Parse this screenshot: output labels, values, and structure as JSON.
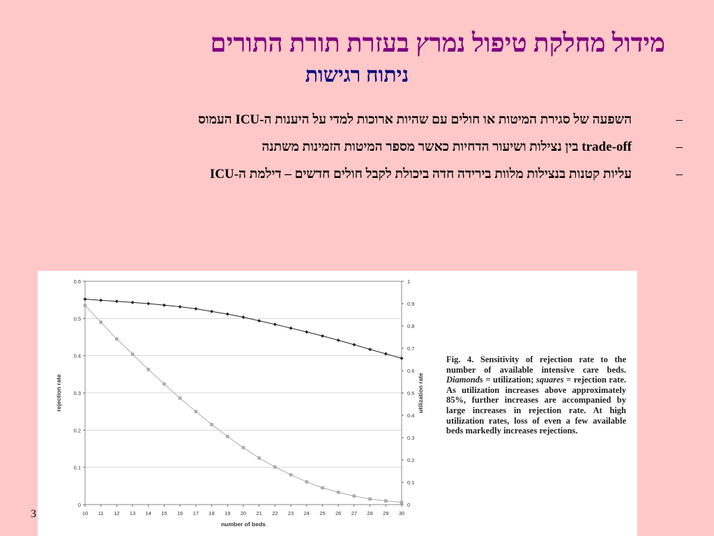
{
  "slide": {
    "title": "מידול מחלקת טיפול נמרץ בעזרת תורת התורים",
    "subtitle": "ניתוח רגישות",
    "bullet_marker": "–",
    "bullets": [
      "השפעה של סגירת המיטות או חולים עם שהיות ארוכות למדי על היענות ה-ICU העמוס",
      "trade-off בין נצילות ושיעור הדחיות כאשר מספר המיטות הזמינות משתנה",
      "עליות קטנות בנצילות מלוות בירידה חדה ביכולת לקבל חולים חדשים – דילמת ה-ICU"
    ],
    "page_number": "3"
  },
  "figure": {
    "caption_lead": "Fig. 4. Sensitivity of rejection rate to the number of available intensive care beds.",
    "caption_diamonds": "Diamonds",
    "caption_mid": " = utilization; ",
    "caption_squares": "squares",
    "caption_tail": " = rejection rate. As utilization increases above approximately 85%, further increases are accompanied by large increases in rejection rate. At high utilization rates, loss of even a few available beds markedly increases rejections."
  },
  "chart_data": {
    "type": "line",
    "xlabel": "number of beds",
    "ylabel": "rejection rate",
    "y2label": "utilization rate",
    "x": [
      10,
      11,
      12,
      13,
      14,
      15,
      16,
      17,
      18,
      19,
      20,
      21,
      22,
      23,
      24,
      25,
      26,
      27,
      28,
      29,
      30
    ],
    "xlim": [
      10,
      30
    ],
    "ylim": [
      0,
      0.6
    ],
    "y2lim": [
      0,
      1
    ],
    "y_ticks": [
      "0",
      "0.1",
      "0.2",
      "0.3",
      "0.4",
      "0.5",
      "0.6"
    ],
    "y2_ticks": [
      "0",
      "0.1",
      "0.2",
      "0.3",
      "0.4",
      "0.5",
      "0.6",
      "0.7",
      "0.8",
      "0.9",
      "1"
    ],
    "grid": true,
    "series": [
      {
        "axis": "right",
        "marker": "diamond",
        "color": "#222222",
        "values": [
          0.92,
          0.915,
          0.91,
          0.905,
          0.9,
          0.893,
          0.886,
          0.877,
          0.865,
          0.853,
          0.839,
          0.823,
          0.807,
          0.79,
          0.773,
          0.755,
          0.736,
          0.716,
          0.695,
          0.675,
          0.655
        ]
      },
      {
        "axis": "left",
        "marker": "square",
        "color": "#aaaaaa",
        "values": [
          0.535,
          0.49,
          0.445,
          0.404,
          0.363,
          0.324,
          0.286,
          0.25,
          0.215,
          0.183,
          0.153,
          0.125,
          0.101,
          0.08,
          0.061,
          0.045,
          0.033,
          0.023,
          0.015,
          0.01,
          0.006
        ]
      }
    ]
  }
}
